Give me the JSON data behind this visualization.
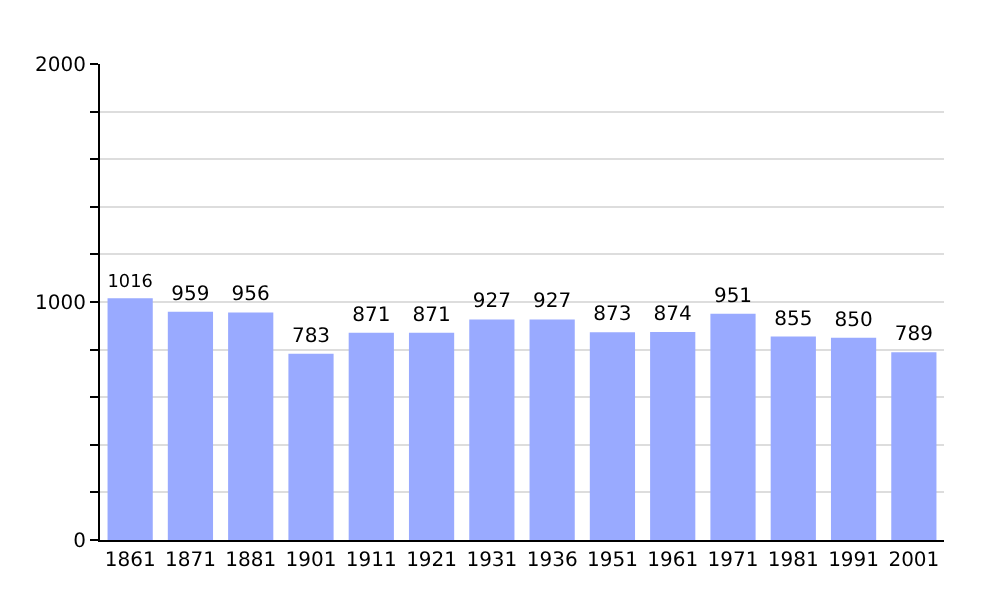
{
  "chart_data": {
    "type": "bar",
    "categories": [
      "1861",
      "1871",
      "1881",
      "1901",
      "1911",
      "1921",
      "1931",
      "1936",
      "1951",
      "1961",
      "1971",
      "1981",
      "1991",
      "2001"
    ],
    "values": [
      1016,
      959,
      956,
      783,
      871,
      871,
      927,
      927,
      873,
      874,
      951,
      855,
      850,
      789
    ],
    "color": "#99aaff",
    "data_labels": true,
    "grid": "y",
    "ylim": [
      0,
      2000
    ],
    "yticks": [
      0,
      {
        "value": 200,
        "label": null
      },
      {
        "value": 400,
        "label": null
      },
      {
        "value": 600,
        "label": null
      },
      {
        "value": 800,
        "label": null
      },
      1000,
      {
        "value": 1200,
        "label": null
      },
      {
        "value": 1400,
        "label": null
      },
      {
        "value": 1600,
        "label": null
      },
      {
        "value": 1800,
        "label": null
      },
      2000
    ]
  }
}
